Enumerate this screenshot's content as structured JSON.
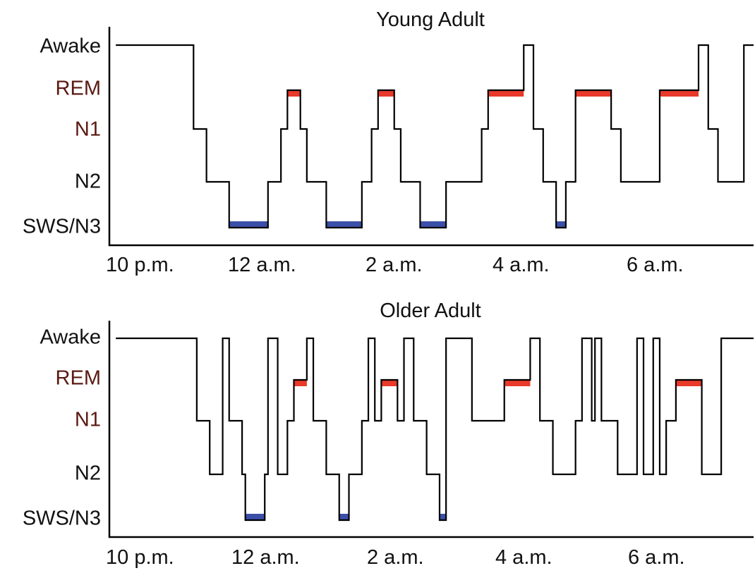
{
  "colors": {
    "rem": "#e8392a",
    "sws": "#3b4fa8",
    "line": "#000000"
  },
  "chart_data": [
    {
      "type": "line",
      "subtype": "hypnogram-step",
      "title": "Young Adult",
      "y_categories": [
        "Awake",
        "REM",
        "N1",
        "N2",
        "SWS/N3"
      ],
      "x_ticks": [
        "10 p.m.",
        "12 a.m.",
        "2 a.m.",
        "4 a.m.",
        "6 a.m."
      ],
      "x_tick_hours": [
        0,
        2,
        4,
        6,
        8
      ],
      "xlim_hours": [
        -0.1,
        9.85
      ],
      "steps": [
        [
          0.0,
          "Awake"
        ],
        [
          1.2,
          "N1"
        ],
        [
          1.4,
          "N2"
        ],
        [
          1.75,
          "SWS/N3"
        ],
        [
          2.35,
          "N2"
        ],
        [
          2.55,
          "N1"
        ],
        [
          2.65,
          "REM"
        ],
        [
          2.85,
          "N1"
        ],
        [
          2.95,
          "N2"
        ],
        [
          3.25,
          "SWS/N3"
        ],
        [
          3.8,
          "N2"
        ],
        [
          3.95,
          "N1"
        ],
        [
          4.05,
          "REM"
        ],
        [
          4.3,
          "N1"
        ],
        [
          4.4,
          "N2"
        ],
        [
          4.7,
          "SWS/N3"
        ],
        [
          5.1,
          "N2"
        ],
        [
          5.65,
          "N1"
        ],
        [
          5.75,
          "REM"
        ],
        [
          6.3,
          "Awake"
        ],
        [
          6.45,
          "N1"
        ],
        [
          6.6,
          "N2"
        ],
        [
          6.8,
          "SWS/N3"
        ],
        [
          6.95,
          "N2"
        ],
        [
          7.1,
          "REM"
        ],
        [
          7.65,
          "N1"
        ],
        [
          7.8,
          "N2"
        ],
        [
          8.4,
          "REM"
        ],
        [
          9.0,
          "Awake"
        ],
        [
          9.15,
          "N1"
        ],
        [
          9.3,
          "N2"
        ],
        [
          9.7,
          "Awake"
        ]
      ],
      "x_end_hours": 9.85,
      "rem_bars": [
        [
          2.65,
          2.85
        ],
        [
          4.05,
          4.3
        ],
        [
          5.75,
          6.3
        ],
        [
          7.1,
          7.65
        ],
        [
          8.4,
          9.0
        ]
      ],
      "sws_bars": [
        [
          1.75,
          2.35
        ],
        [
          3.25,
          3.8
        ],
        [
          4.7,
          5.1
        ],
        [
          6.8,
          6.95
        ]
      ]
    },
    {
      "type": "line",
      "subtype": "hypnogram-step",
      "title": "Older Adult",
      "y_categories": [
        "Awake",
        "REM",
        "N1",
        "N2",
        "SWS/N3"
      ],
      "x_ticks": [
        "10 p.m.",
        "12 a.m.",
        "2 a.m.",
        "4 a.m.",
        "6 a.m."
      ],
      "x_tick_hours": [
        0,
        2,
        4,
        6,
        8
      ],
      "xlim_hours": [
        -0.1,
        9.85
      ],
      "steps": [
        [
          0.0,
          "Awake"
        ],
        [
          1.25,
          "N1"
        ],
        [
          1.45,
          "N2"
        ],
        [
          1.65,
          "Awake"
        ],
        [
          1.75,
          "N1"
        ],
        [
          1.95,
          "N2"
        ],
        [
          2.0,
          "SWS/N3"
        ],
        [
          2.3,
          "N2"
        ],
        [
          2.35,
          "Awake"
        ],
        [
          2.5,
          "N2"
        ],
        [
          2.65,
          "N1"
        ],
        [
          2.75,
          "REM"
        ],
        [
          2.95,
          "Awake"
        ],
        [
          3.05,
          "N1"
        ],
        [
          3.25,
          "N2"
        ],
        [
          3.45,
          "SWS/N3"
        ],
        [
          3.6,
          "N2"
        ],
        [
          3.8,
          "N1"
        ],
        [
          3.9,
          "Awake"
        ],
        [
          4.0,
          "N1"
        ],
        [
          4.1,
          "REM"
        ],
        [
          4.35,
          "N1"
        ],
        [
          4.45,
          "Awake"
        ],
        [
          4.6,
          "N1"
        ],
        [
          4.8,
          "N2"
        ],
        [
          5.0,
          "SWS/N3"
        ],
        [
          5.1,
          "Awake"
        ],
        [
          5.5,
          "N1"
        ],
        [
          6.0,
          "REM"
        ],
        [
          6.4,
          "Awake"
        ],
        [
          6.55,
          "N1"
        ],
        [
          6.75,
          "N2"
        ],
        [
          7.1,
          "N1"
        ],
        [
          7.2,
          "Awake"
        ],
        [
          7.35,
          "N1"
        ],
        [
          7.4,
          "Awake"
        ],
        [
          7.5,
          "N1"
        ],
        [
          7.75,
          "N2"
        ],
        [
          8.05,
          "Awake"
        ],
        [
          8.15,
          "N2"
        ],
        [
          8.3,
          "Awake"
        ],
        [
          8.4,
          "N2"
        ],
        [
          8.5,
          "N1"
        ],
        [
          8.65,
          "REM"
        ],
        [
          9.05,
          "N2"
        ],
        [
          9.35,
          "Awake"
        ]
      ],
      "x_end_hours": 9.85,
      "rem_bars": [
        [
          2.75,
          2.95
        ],
        [
          4.1,
          4.35
        ],
        [
          6.0,
          6.4
        ],
        [
          8.65,
          9.05
        ]
      ],
      "sws_bars": [
        [
          2.0,
          2.3
        ],
        [
          3.45,
          3.6
        ],
        [
          5.0,
          5.1
        ]
      ]
    }
  ]
}
